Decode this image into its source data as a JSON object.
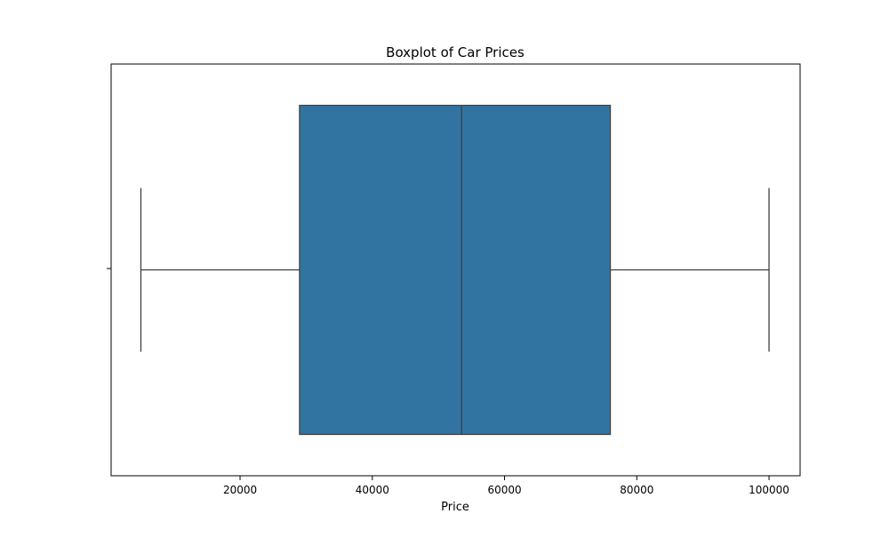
{
  "chart_data": {
    "type": "boxplot",
    "title": "Boxplot of Car Prices",
    "xlabel": "Price",
    "ylabel": "",
    "orientation": "horizontal",
    "xlim": [
      500,
      104700
    ],
    "xticks": [
      20000,
      40000,
      60000,
      80000,
      100000
    ],
    "xtick_labels": [
      "20000",
      "40000",
      "60000",
      "80000",
      "100000"
    ],
    "grid": false,
    "legend": "none",
    "series": [
      {
        "min": 5000,
        "q1": 29000,
        "median": 53500,
        "q3": 76000,
        "max": 100000,
        "color": "#3274a1",
        "line_color": "#3f3f3f"
      }
    ]
  }
}
